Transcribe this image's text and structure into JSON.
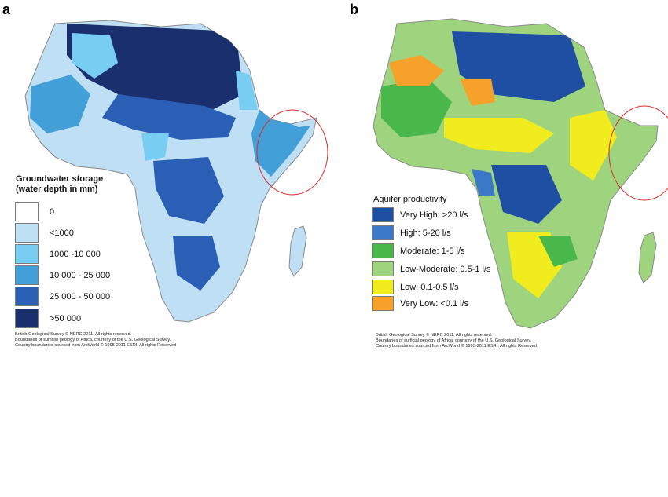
{
  "panels": [
    {
      "letter": "a",
      "legend": {
        "title_line1": "Groundwater storage",
        "title_line2": "(water depth in mm)",
        "items": [
          {
            "label": "0",
            "color": "#ffffff"
          },
          {
            "label": "<1000",
            "color": "#bfdff5"
          },
          {
            "label": "1000 -10 000",
            "color": "#78cdf2"
          },
          {
            "label": "10 000 - 25 000",
            "color": "#429fd8"
          },
          {
            "label": "25 000 - 50 000",
            "color": "#2a5fb5"
          },
          {
            "label": ">50 000",
            "color": "#1a2f6e"
          }
        ]
      },
      "credits": [
        "British Geological Survey © NERC 2011.  All rights reserved.",
        "Boundaries of surficial geology of Africa, courtesy of the U.S. Geological Survey.",
        "Country boundaries sourced from ArcWorld © 1995-2011 ESRI.  All rights Reserved"
      ]
    },
    {
      "letter": "b",
      "legend": {
        "title": "Aquifer productivity",
        "items": [
          {
            "label": "Very High: >20 l/s",
            "color": "#1f4fa3"
          },
          {
            "label": "High: 5-20 l/s",
            "color": "#3b78c8"
          },
          {
            "label": "Moderate: 1-5 l/s",
            "color": "#48b84a"
          },
          {
            "label": "Low-Moderate: 0.5-1 l/s",
            "color": "#9fd47e"
          },
          {
            "label": "Low: 0.1-0.5 l/s",
            "color": "#f0ec1e"
          },
          {
            "label": "Very Low: <0.1 l/s",
            "color": "#f6a22a"
          }
        ]
      },
      "credits": [
        "British Geological Survey © NERC 2011.  All rights reserved.",
        "Boundaries of surficial geology of Africa, courtesy of the U.S. Geological Survey.",
        "Country boundaries sourced from ArcWorld © 1995-2011 ESRI.  All rights Reserved"
      ]
    }
  ],
  "highlight_color": "#d92b2b"
}
